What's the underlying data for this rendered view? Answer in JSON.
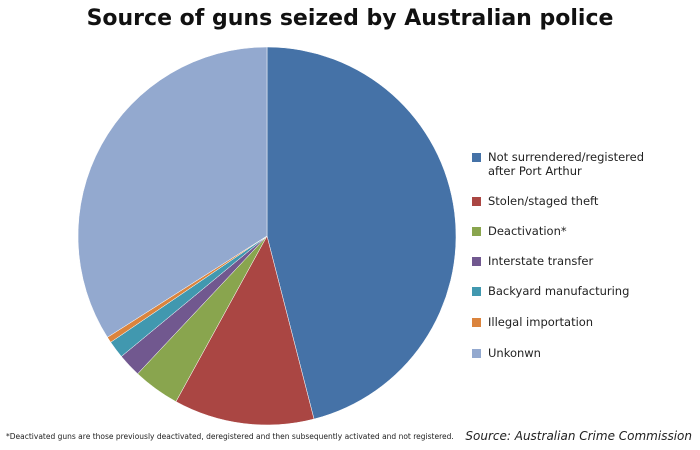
{
  "chart_data": {
    "type": "pie",
    "title": "Source of guns seized by Australian police",
    "categories": [
      "Not surrendered/registered after Port Arthur",
      "Stolen/staged theft",
      "Deactivation*",
      "Interstate transfer",
      "Backyard manufacturing",
      "Illegal importation",
      "Unkonwn"
    ],
    "values": [
      46,
      12,
      4,
      2,
      1.5,
      0.5,
      34
    ],
    "colors": [
      "#4572a7",
      "#aa4643",
      "#89a54e",
      "#71588f",
      "#4198af",
      "#db843d",
      "#93a9cf"
    ],
    "legend": "right",
    "footnote": "*Deactivated guns are those previously deactivated, deregistered and then subsequently activated and not registered.",
    "source": "Source: Australian Crime Commission"
  }
}
